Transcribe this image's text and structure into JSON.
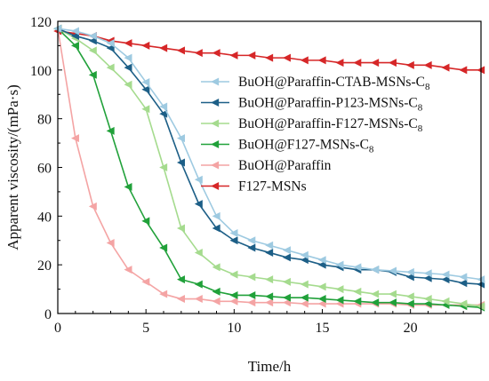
{
  "chart_data": {
    "type": "line",
    "xlabel": "Time/h",
    "ylabel": "Apparent viscosity/(mPa·s)",
    "xlim": [
      0,
      24
    ],
    "ylim": [
      0,
      120
    ],
    "xticks": [
      0,
      5,
      10,
      15,
      20
    ],
    "yticks": [
      0,
      20,
      40,
      60,
      80,
      100,
      120
    ],
    "grid": false,
    "legend_position": "center-right",
    "series": [
      {
        "name": "BuOH@Paraffin-CTAB-MSNs-C",
        "name_subscript": "8",
        "color": "#9ecae1",
        "marker": "left-triangle",
        "x": [
          0,
          1,
          2,
          3,
          4,
          5,
          6,
          7,
          8,
          9,
          10,
          11,
          12,
          13,
          14,
          15,
          16,
          17,
          18,
          19,
          20,
          21,
          22,
          23,
          24
        ],
        "y": [
          117,
          116,
          114,
          111,
          105,
          95,
          85,
          72,
          55,
          40,
          33,
          30,
          28,
          26,
          24,
          22,
          20,
          19,
          18,
          17.5,
          17,
          16.5,
          16,
          15,
          14
        ]
      },
      {
        "name": "BuOH@Paraffin-P123-MSNs-C",
        "name_subscript": "8",
        "color": "#1d5f87",
        "marker": "left-triangle",
        "x": [
          0,
          1,
          2,
          3,
          4,
          5,
          6,
          7,
          8,
          9,
          10,
          11,
          12,
          13,
          14,
          15,
          16,
          17,
          18,
          19,
          20,
          21,
          22,
          23,
          24
        ],
        "y": [
          117,
          114,
          112,
          109,
          101,
          92,
          82,
          62,
          45,
          35,
          30,
          27,
          25,
          23,
          22,
          20,
          19,
          18,
          18,
          17,
          15,
          14.5,
          14,
          12.5,
          12
        ]
      },
      {
        "name": "BuOH@Paraffin-F127-MSNs-C",
        "name_subscript": "8",
        "color": "#a5db8e",
        "marker": "left-triangle",
        "x": [
          0,
          1,
          2,
          3,
          4,
          5,
          6,
          7,
          8,
          9,
          10,
          11,
          12,
          13,
          14,
          15,
          16,
          17,
          18,
          19,
          20,
          21,
          22,
          23,
          24
        ],
        "y": [
          117,
          113,
          108,
          101,
          94,
          84,
          60,
          35,
          25,
          19,
          16,
          15,
          14,
          13,
          12,
          11,
          10,
          9,
          8,
          8,
          7,
          6,
          5,
          4,
          3
        ]
      },
      {
        "name": "BuOH@F127-MSNs-C",
        "name_subscript": "8",
        "color": "#21a13a",
        "marker": "left-triangle",
        "x": [
          0,
          1,
          2,
          3,
          4,
          5,
          6,
          7,
          8,
          9,
          10,
          11,
          12,
          13,
          14,
          15,
          16,
          17,
          18,
          19,
          20,
          21,
          22,
          23,
          24
        ],
        "y": [
          117,
          110,
          98,
          75,
          52,
          38,
          27,
          14,
          12,
          9,
          7.5,
          7.5,
          7,
          6.5,
          6.5,
          6,
          5.5,
          5,
          4.5,
          4.5,
          4,
          4,
          3.5,
          3,
          2.5
        ]
      },
      {
        "name": "BuOH@Paraffin",
        "name_subscript": "",
        "color": "#f4a4a4",
        "marker": "left-triangle",
        "x": [
          0,
          1,
          2,
          3,
          4,
          5,
          6,
          7,
          8,
          9,
          10,
          11,
          12,
          13,
          14,
          15,
          16,
          17,
          18,
          19,
          20,
          21,
          22,
          23,
          24
        ],
        "y": [
          117,
          72,
          44,
          29,
          18,
          13,
          8,
          6,
          6,
          5,
          5,
          4.5,
          4.5,
          4.5,
          4,
          4,
          4,
          4,
          4,
          4,
          3.5,
          3.5,
          3.5,
          3.5,
          3.5
        ]
      },
      {
        "name": "F127-MSNs",
        "name_subscript": "",
        "color": "#d62728",
        "marker": "left-triangle",
        "x": [
          0,
          1,
          2,
          3,
          4,
          5,
          6,
          7,
          8,
          9,
          10,
          11,
          12,
          13,
          14,
          15,
          16,
          17,
          18,
          19,
          20,
          21,
          22,
          23,
          24
        ],
        "y": [
          116,
          115,
          114,
          112,
          111,
          110,
          109,
          108,
          107,
          107,
          106,
          106,
          105,
          105,
          104,
          104,
          103,
          103,
          103,
          103,
          102,
          102,
          101,
          100,
          100
        ]
      }
    ]
  }
}
